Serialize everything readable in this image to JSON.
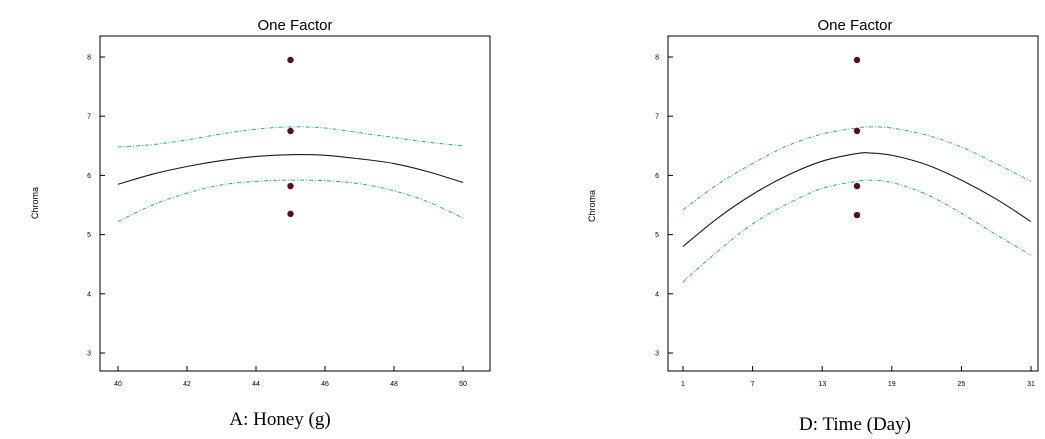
{
  "chart_data": [
    {
      "type": "line",
      "title": "One Factor",
      "xlabel": "A: Honey (g)",
      "ylabel": "Chroma",
      "xlim": [
        40,
        50
      ],
      "ylim": [
        2.8,
        8.3
      ],
      "xticks": [
        "40",
        "42",
        "44",
        "46",
        "48",
        "50"
      ],
      "yticks": [
        "3",
        "4",
        "5",
        "6",
        "7",
        "8"
      ],
      "grid": false,
      "series": [
        {
          "role": "prediction",
          "color": "#1a1a1a",
          "style": "solid",
          "x": [
            40,
            41,
            42,
            43,
            44,
            45,
            46,
            47,
            48,
            49,
            50
          ],
          "y": [
            5.85,
            6.02,
            6.15,
            6.25,
            6.32,
            6.35,
            6.34,
            6.28,
            6.2,
            6.06,
            5.88
          ]
        },
        {
          "role": "upper-ci",
          "color": "#2aa8a8",
          "style": "dashed",
          "x": [
            40,
            41,
            42,
            43,
            44,
            45,
            46,
            47,
            48,
            49,
            50
          ],
          "y": [
            6.48,
            6.52,
            6.6,
            6.7,
            6.78,
            6.82,
            6.8,
            6.72,
            6.64,
            6.56,
            6.5
          ]
        },
        {
          "role": "lower-ci",
          "color": "#2aa8a8",
          "style": "dashed",
          "x": [
            40,
            41,
            42,
            43,
            44,
            45,
            46,
            47,
            48,
            49,
            50
          ],
          "y": [
            5.22,
            5.5,
            5.7,
            5.84,
            5.9,
            5.92,
            5.91,
            5.86,
            5.74,
            5.55,
            5.28
          ]
        }
      ],
      "points": {
        "color": "#5a0f14",
        "x": [
          45,
          45,
          45,
          45
        ],
        "y": [
          7.95,
          6.75,
          5.82,
          5.35
        ]
      }
    },
    {
      "type": "line",
      "title": "One Factor",
      "xlabel": "D: Time (Day)",
      "ylabel": "Chroma",
      "xlim": [
        0,
        32
      ],
      "ylim": [
        2.8,
        8.3
      ],
      "xticks": [
        "1",
        "7",
        "13",
        "19",
        "25",
        "31"
      ],
      "yticks": [
        "3",
        "4",
        "5",
        "6",
        "7",
        "8"
      ],
      "grid": false,
      "series": [
        {
          "role": "prediction",
          "color": "#1a1a1a",
          "style": "solid",
          "x": [
            1,
            4,
            7,
            10,
            13,
            16,
            17,
            19,
            22,
            25,
            28,
            31
          ],
          "y": [
            4.8,
            5.28,
            5.68,
            6.0,
            6.24,
            6.37,
            6.38,
            6.34,
            6.18,
            5.92,
            5.6,
            5.22
          ]
        },
        {
          "role": "upper-ci",
          "color": "#2aa8a8",
          "style": "dashed",
          "x": [
            1,
            4,
            7,
            10,
            13,
            16,
            17,
            19,
            22,
            25,
            28,
            31
          ],
          "y": [
            5.42,
            5.85,
            6.2,
            6.5,
            6.7,
            6.8,
            6.82,
            6.8,
            6.68,
            6.48,
            6.2,
            5.9
          ]
        },
        {
          "role": "lower-ci",
          "color": "#2aa8a8",
          "style": "dashed",
          "x": [
            1,
            4,
            7,
            10,
            13,
            16,
            17,
            19,
            22,
            25,
            28,
            31
          ],
          "y": [
            4.2,
            4.72,
            5.18,
            5.52,
            5.78,
            5.9,
            5.92,
            5.88,
            5.68,
            5.36,
            5.0,
            4.65
          ]
        }
      ],
      "points": {
        "color": "#5a0f14",
        "x": [
          16,
          16,
          16,
          16
        ],
        "y": [
          7.95,
          6.75,
          5.82,
          5.33
        ]
      }
    }
  ]
}
